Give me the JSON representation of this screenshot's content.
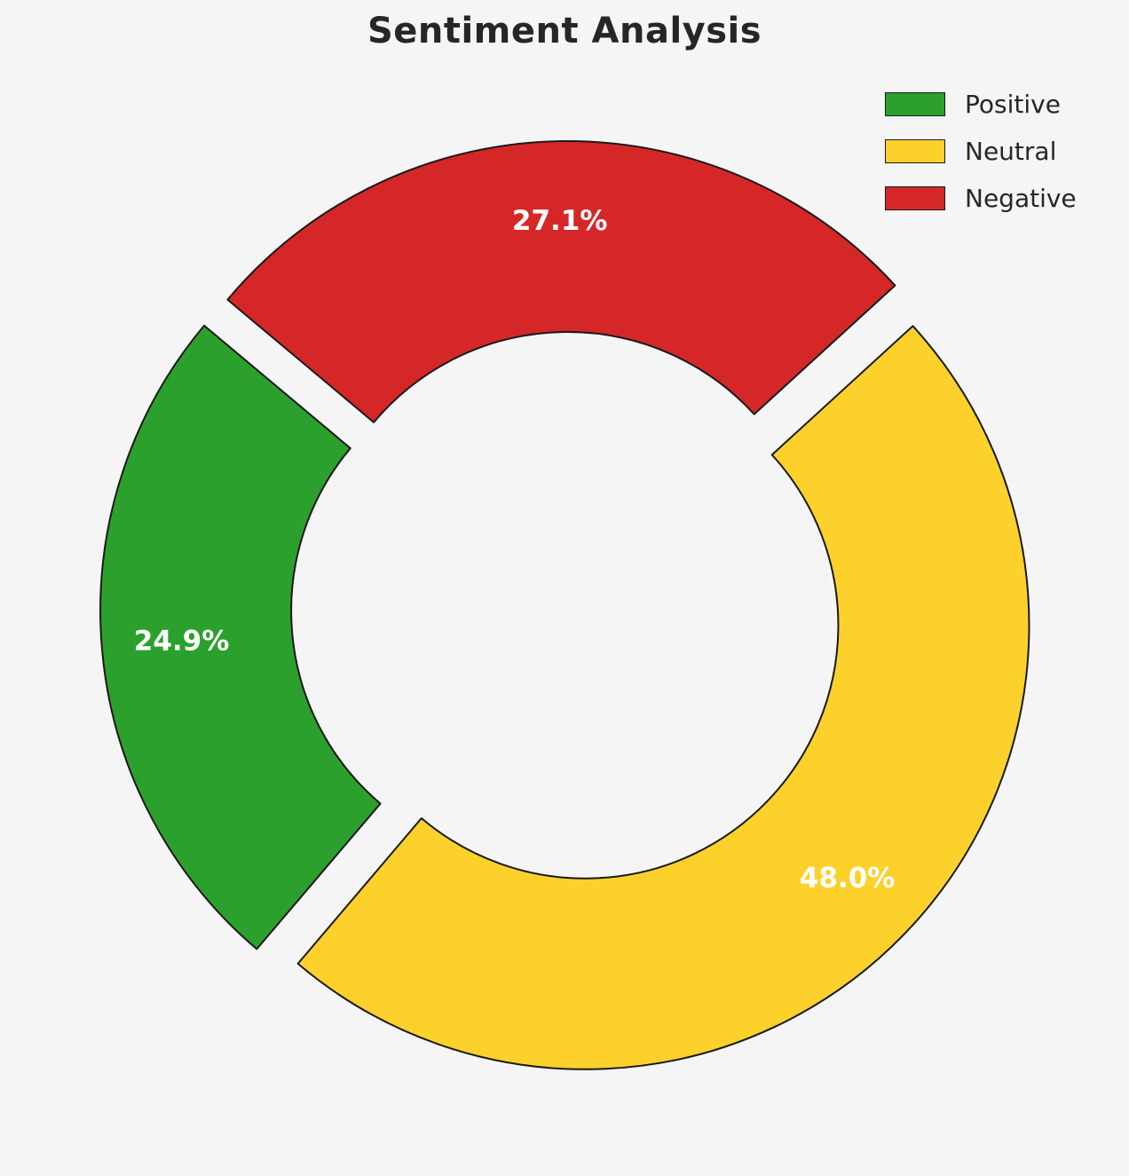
{
  "page": {
    "background": "#f5f5f5"
  },
  "chart_data": {
    "type": "pie",
    "subtype": "donut",
    "title": "Sentiment Analysis",
    "labels": [
      "Positive",
      "Neutral",
      "Negative"
    ],
    "values": [
      24.9,
      48.0,
      27.1
    ],
    "value_labels": [
      "24.9%",
      "48.0%",
      "27.1%"
    ],
    "colors": [
      "#2ca02c",
      "#fcd12b",
      "#d62728"
    ],
    "edge_color": "#1a1a1a",
    "percent_label_color": "#ffffff",
    "start_angle": 140,
    "direction": "counterclockwise",
    "explode_ratio": 0.054,
    "inner_radius_ratio": 0.57,
    "legend": {
      "position": "upper right",
      "entries": [
        "Positive",
        "Neutral",
        "Negative"
      ]
    }
  }
}
